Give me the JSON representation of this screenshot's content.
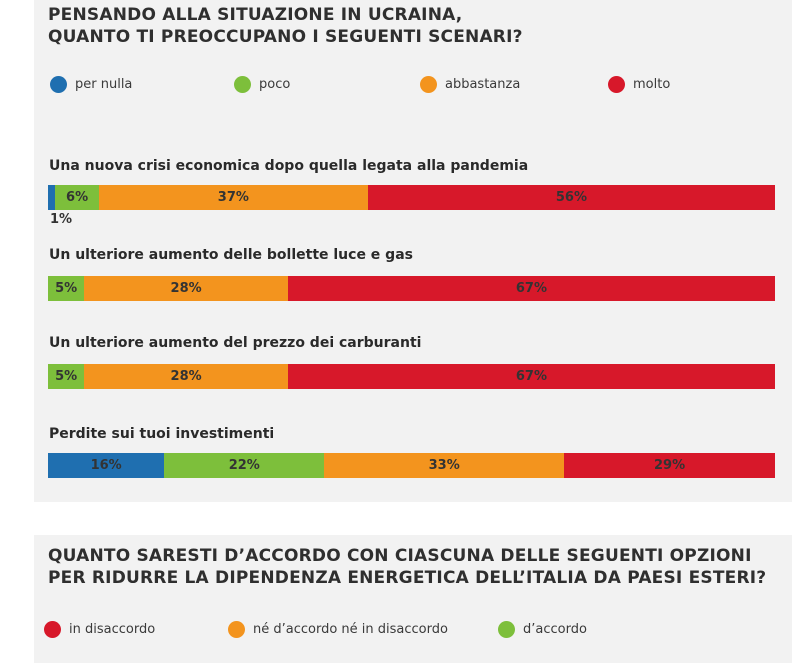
{
  "colors": {
    "per_nulla": "#1f6fb0",
    "poco": "#7dbf3b",
    "abbastanza": "#f3941e",
    "molto": "#d7182a",
    "panel_bg": "#f2f2f2"
  },
  "chart_data": [
    {
      "type": "bar",
      "orientation": "horizontal",
      "stacked": true,
      "title_lines": [
        "PENSANDO ALLA SITUAZIONE IN UCRAINA,",
        "QUANTO TI PREOCCUPANO I SEGUENTI SCENARI?"
      ],
      "legend": [
        "per nulla",
        "poco",
        "abbastanza",
        "molto"
      ],
      "legend_placement": "top",
      "categories": [
        "Una nuova crisi economica dopo quella legata alla pandemia",
        "Un ulteriore aumento delle bollette luce e gas",
        "Un ulteriore aumento del prezzo dei carburanti",
        "Perdite sui tuoi investimenti"
      ],
      "series": [
        {
          "name": "per nulla",
          "values": [
            1,
            0,
            0,
            16
          ],
          "labels": [
            "1%",
            "",
            "",
            "16%"
          ]
        },
        {
          "name": "poco",
          "values": [
            6,
            5,
            5,
            22
          ],
          "labels": [
            "6%",
            "5%",
            "5%",
            "22%"
          ]
        },
        {
          "name": "abbastanza",
          "values": [
            37,
            28,
            28,
            33
          ],
          "labels": [
            "37%",
            "28%",
            "28%",
            "33%"
          ]
        },
        {
          "name": "molto",
          "values": [
            56,
            67,
            67,
            29
          ],
          "labels": [
            "56%",
            "67%",
            "67%",
            "29%"
          ]
        }
      ],
      "grid": false
    },
    {
      "type": "bar",
      "title_lines": [
        "QUANTO SARESTI D’ACCORDO CON CIASCUNA DELLE SEGUENTI OPZIONI",
        "PER RIDURRE LA DIPENDENZA ENERGETICA DELL’ITALIA DA PAESI ESTERI?"
      ],
      "legend": [
        "in disaccordo",
        "né d’accordo né in disaccordo",
        "d’accordo"
      ],
      "legend_colors": [
        "#d7182a",
        "#f3941e",
        "#7dbf3b"
      ],
      "legend_placement": "top"
    }
  ]
}
